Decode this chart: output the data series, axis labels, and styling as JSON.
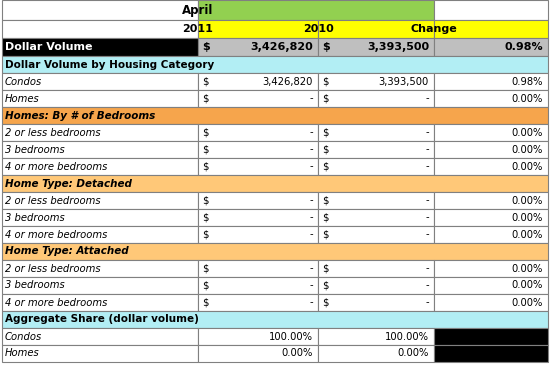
{
  "title": "April",
  "col_headers": [
    "2011",
    "2010",
    "Change"
  ],
  "header_bg_april": "#92D050",
  "header_bg_year": "#FFFF00",
  "white_bg": "#FFFFFF",
  "cyan_bg": "#B2EEF4",
  "orange_section_bg": "#F6A54C",
  "orange_light_bg": "#FFC878",
  "silver_bg": "#BFBFBF",
  "black": "#000000",
  "yellow": "#FFFF00",
  "border_color": "#808080",
  "row_dollar_volume": {
    "label": "Dollar Volume",
    "val2011_dollar": "$",
    "val2011_num": "3,426,820",
    "val2010_dollar": "$",
    "val2010_num": "3,393,500",
    "change": "0.98%"
  },
  "rows_housing": [
    {
      "label": "Condos",
      "d1": "$",
      "n1": "3,426,820",
      "d2": "$",
      "n2": "3,393,500",
      "change": "0.98%"
    },
    {
      "label": "Homes",
      "d1": "$",
      "n1": "-",
      "d2": "$",
      "n2": "-",
      "change": "0.00%"
    }
  ],
  "rows_bedrooms": [
    {
      "label": "2 or less bedrooms",
      "d1": "$",
      "n1": "-",
      "d2": "$",
      "n2": "-",
      "change": "0.00%"
    },
    {
      "label": "3 bedrooms",
      "d1": "$",
      "n1": "-",
      "d2": "$",
      "n2": "-",
      "change": "0.00%"
    },
    {
      "label": "4 or more bedrooms",
      "d1": "$",
      "n1": "-",
      "d2": "$",
      "n2": "-",
      "change": "0.00%"
    }
  ],
  "rows_detached": [
    {
      "label": "2 or less bedrooms",
      "d1": "$",
      "n1": "-",
      "d2": "$",
      "n2": "-",
      "change": "0.00%"
    },
    {
      "label": "3 bedrooms",
      "d1": "$",
      "n1": "-",
      "d2": "$",
      "n2": "-",
      "change": "0.00%"
    },
    {
      "label": "4 or more bedrooms",
      "d1": "$",
      "n1": "-",
      "d2": "$",
      "n2": "-",
      "change": "0.00%"
    }
  ],
  "rows_attached": [
    {
      "label": "2 or less bedrooms",
      "d1": "$",
      "n1": "-",
      "d2": "$",
      "n2": "-",
      "change": "0.00%"
    },
    {
      "label": "3 bedrooms",
      "d1": "$",
      "n1": "-",
      "d2": "$",
      "n2": "-",
      "change": "0.00%"
    },
    {
      "label": "4 or more bedrooms",
      "d1": "$",
      "n1": "-",
      "d2": "$",
      "n2": "-",
      "change": "0.00%"
    }
  ],
  "rows_aggregate": [
    {
      "label": "Condos",
      "v1": "100.00%",
      "v2": "100.00%"
    },
    {
      "label": "Homes",
      "v1": "0.00%",
      "v2": "0.00%"
    }
  ],
  "sections": {
    "housing": "Dollar Volume by Housing Category",
    "bedrooms": "Homes: By # of Bedrooms",
    "detached": "Home Type: Detached",
    "attached": "Home Type: Attached",
    "aggregate": "Aggregate Share (dollar volume)"
  }
}
